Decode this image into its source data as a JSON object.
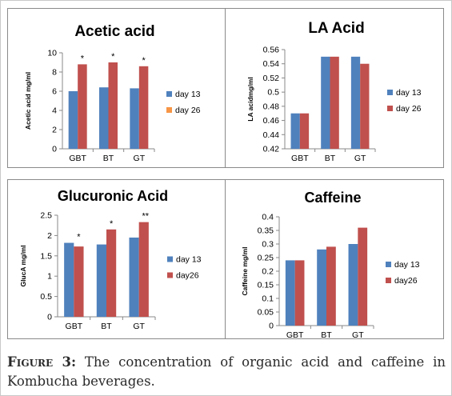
{
  "colors": {
    "day13": "#4f81bd",
    "day26": "#c0504d",
    "day26_orange": "#f79646",
    "axis": "#888888",
    "text": "#000000"
  },
  "chart_data": [
    {
      "type": "bar",
      "title": "Acetic acid",
      "ylabel": "Acetic acid mg/ml",
      "categories": [
        "GBT",
        "BT",
        "GT"
      ],
      "ylim": [
        0,
        10
      ],
      "yticks": [
        "0",
        "2",
        "4",
        "6",
        "8",
        "10"
      ],
      "legend": "right",
      "legend_entries": [
        "day 13",
        "day 26"
      ],
      "series": [
        {
          "name": "day 13",
          "values": [
            6.0,
            6.4,
            6.3
          ]
        },
        {
          "name": "day 26",
          "values": [
            8.8,
            9.0,
            8.6
          ]
        }
      ],
      "annotations": [
        "*",
        "*",
        "*"
      ],
      "grid": false
    },
    {
      "type": "bar",
      "title": "LA Acid",
      "ylabel": "LA acidmg/ml",
      "categories": [
        "GBT",
        "BT",
        "GT"
      ],
      "ylim": [
        0.42,
        0.56
      ],
      "yticks": [
        "0.42",
        "0.44",
        "0.46",
        "0.48",
        "0.5",
        "0.52",
        "0.54",
        "0.56"
      ],
      "legend": "right",
      "legend_entries": [
        "day 13",
        "day 26"
      ],
      "series": [
        {
          "name": "day 13",
          "values": [
            0.47,
            0.55,
            0.55
          ]
        },
        {
          "name": "day 26",
          "values": [
            0.47,
            0.55,
            0.54
          ]
        }
      ],
      "annotations": [
        "",
        "",
        ""
      ],
      "grid": false
    },
    {
      "type": "bar",
      "title": "Glucuronic Acid",
      "ylabel": "GlucA mg/ml",
      "categories": [
        "GBT",
        "BT",
        "GT"
      ],
      "ylim": [
        0,
        2.5
      ],
      "yticks": [
        "0",
        "0.5",
        "1",
        "1.5",
        "2",
        "2.5"
      ],
      "legend": "right",
      "legend_entries": [
        "day 13",
        "day26"
      ],
      "series": [
        {
          "name": "day 13",
          "values": [
            1.82,
            1.78,
            1.95
          ]
        },
        {
          "name": "day26",
          "values": [
            1.73,
            2.15,
            2.33
          ]
        }
      ],
      "annotations": [
        "*",
        "*",
        "**"
      ],
      "grid": false
    },
    {
      "type": "bar",
      "title": "Caffeine",
      "ylabel": "Caffeine mg/ml",
      "categories": [
        "GBT",
        "BT",
        "GT"
      ],
      "ylim": [
        0,
        0.4
      ],
      "yticks": [
        "0",
        "0.05",
        "0.1",
        "0.15",
        "0.2",
        "0.25",
        "0.3",
        "0.35",
        "0.4"
      ],
      "legend": "right",
      "legend_entries": [
        "day 13",
        "day26"
      ],
      "series": [
        {
          "name": "day 13",
          "values": [
            0.24,
            0.28,
            0.3
          ]
        },
        {
          "name": "day26",
          "values": [
            0.24,
            0.29,
            0.36
          ]
        }
      ],
      "annotations": [
        "",
        "",
        ""
      ],
      "grid": false
    }
  ],
  "caption": {
    "label": "Figure 3:",
    "text": " The concentration of organic acid and caffeine in Kombucha beverages."
  }
}
